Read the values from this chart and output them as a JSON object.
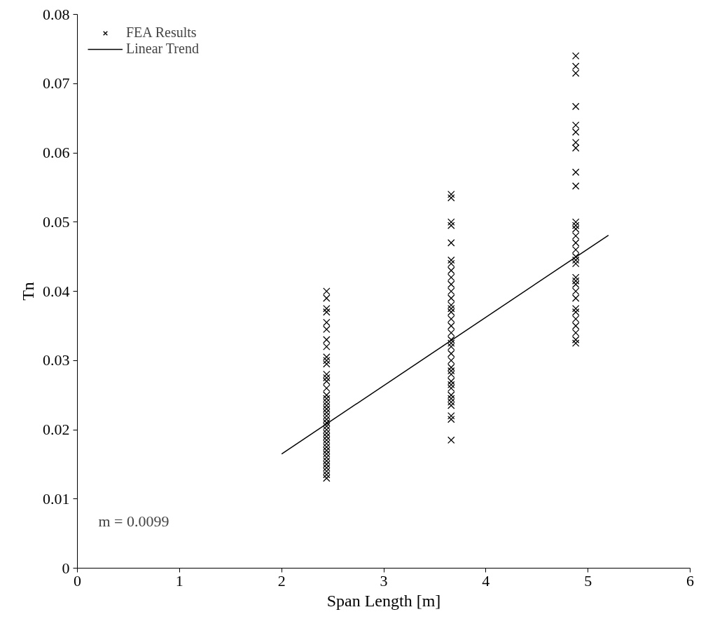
{
  "chart_data": {
    "type": "scatter",
    "xlabel": "Span Length [m]",
    "ylabel": "Tn",
    "xlim": [
      0,
      6
    ],
    "ylim": [
      0,
      0.08
    ],
    "xticks": [
      0,
      1,
      2,
      3,
      4,
      5,
      6
    ],
    "yticks": [
      0,
      0.01,
      0.02,
      0.03,
      0.04,
      0.05,
      0.06,
      0.07,
      0.08
    ],
    "grid": false,
    "legend": "top left",
    "marker": "cross",
    "annotations": [
      "m = 0.0099"
    ],
    "series": [
      {
        "name": "FEA Results",
        "color": "#000000",
        "x": [
          2.44,
          2.44,
          2.44,
          2.44,
          2.44,
          2.44,
          2.44,
          2.44,
          2.44,
          2.44,
          2.44,
          2.44,
          2.44,
          2.44,
          2.44,
          2.44,
          2.44,
          2.44,
          2.44,
          2.44,
          2.44,
          2.44,
          2.44,
          2.44,
          2.44,
          2.44,
          2.44,
          2.44,
          2.44,
          2.44,
          2.44,
          2.44,
          2.44,
          2.44,
          2.44,
          2.44,
          2.44,
          2.44,
          2.44,
          2.44,
          3.66,
          3.66,
          3.66,
          3.66,
          3.66,
          3.66,
          3.66,
          3.66,
          3.66,
          3.66,
          3.66,
          3.66,
          3.66,
          3.66,
          3.66,
          3.66,
          3.66,
          3.66,
          3.66,
          3.66,
          3.66,
          3.66,
          3.66,
          3.66,
          3.66,
          3.66,
          3.66,
          3.66,
          3.66,
          3.66,
          3.66,
          3.66,
          3.66,
          3.66,
          3.66,
          3.66,
          4.88,
          4.88,
          4.88,
          4.88,
          4.88,
          4.88,
          4.88,
          4.88,
          4.88,
          4.88,
          4.88,
          4.88,
          4.88,
          4.88,
          4.88,
          4.88,
          4.88,
          4.88,
          4.88,
          4.88,
          4.88,
          4.88,
          4.88,
          4.88,
          4.88,
          4.88,
          4.88,
          4.88,
          4.88,
          4.88,
          4.88
        ],
        "values": [
          0.04,
          0.039,
          0.0375,
          0.037,
          0.0355,
          0.0345,
          0.033,
          0.032,
          0.0305,
          0.03,
          0.0295,
          0.028,
          0.0275,
          0.027,
          0.026,
          0.025,
          0.0245,
          0.024,
          0.0235,
          0.023,
          0.0225,
          0.022,
          0.0215,
          0.021,
          0.0205,
          0.02,
          0.0195,
          0.019,
          0.0185,
          0.018,
          0.0175,
          0.017,
          0.0165,
          0.016,
          0.0155,
          0.015,
          0.0145,
          0.014,
          0.0135,
          0.013,
          0.054,
          0.0535,
          0.05,
          0.0495,
          0.047,
          0.0445,
          0.044,
          0.043,
          0.042,
          0.041,
          0.04,
          0.039,
          0.038,
          0.0375,
          0.037,
          0.036,
          0.035,
          0.034,
          0.033,
          0.0325,
          0.032,
          0.031,
          0.03,
          0.029,
          0.0285,
          0.028,
          0.027,
          0.0265,
          0.026,
          0.025,
          0.0245,
          0.024,
          0.0235,
          0.022,
          0.0215,
          0.0185,
          0.074,
          0.0725,
          0.0715,
          0.0667,
          0.064,
          0.063,
          0.0615,
          0.0607,
          0.0572,
          0.0552,
          0.05,
          0.0495,
          0.049,
          0.048,
          0.047,
          0.046,
          0.045,
          0.0445,
          0.044,
          0.042,
          0.0415,
          0.041,
          0.04,
          0.039,
          0.0375,
          0.037,
          0.036,
          0.035,
          0.034,
          0.033,
          0.0325
        ]
      },
      {
        "name": "Linear Trend",
        "type": "line",
        "color": "#000000",
        "line_style": "solid",
        "marker": "none",
        "x": [
          2,
          5.2
        ],
        "values": [
          0.0165,
          0.0481
        ]
      }
    ]
  }
}
